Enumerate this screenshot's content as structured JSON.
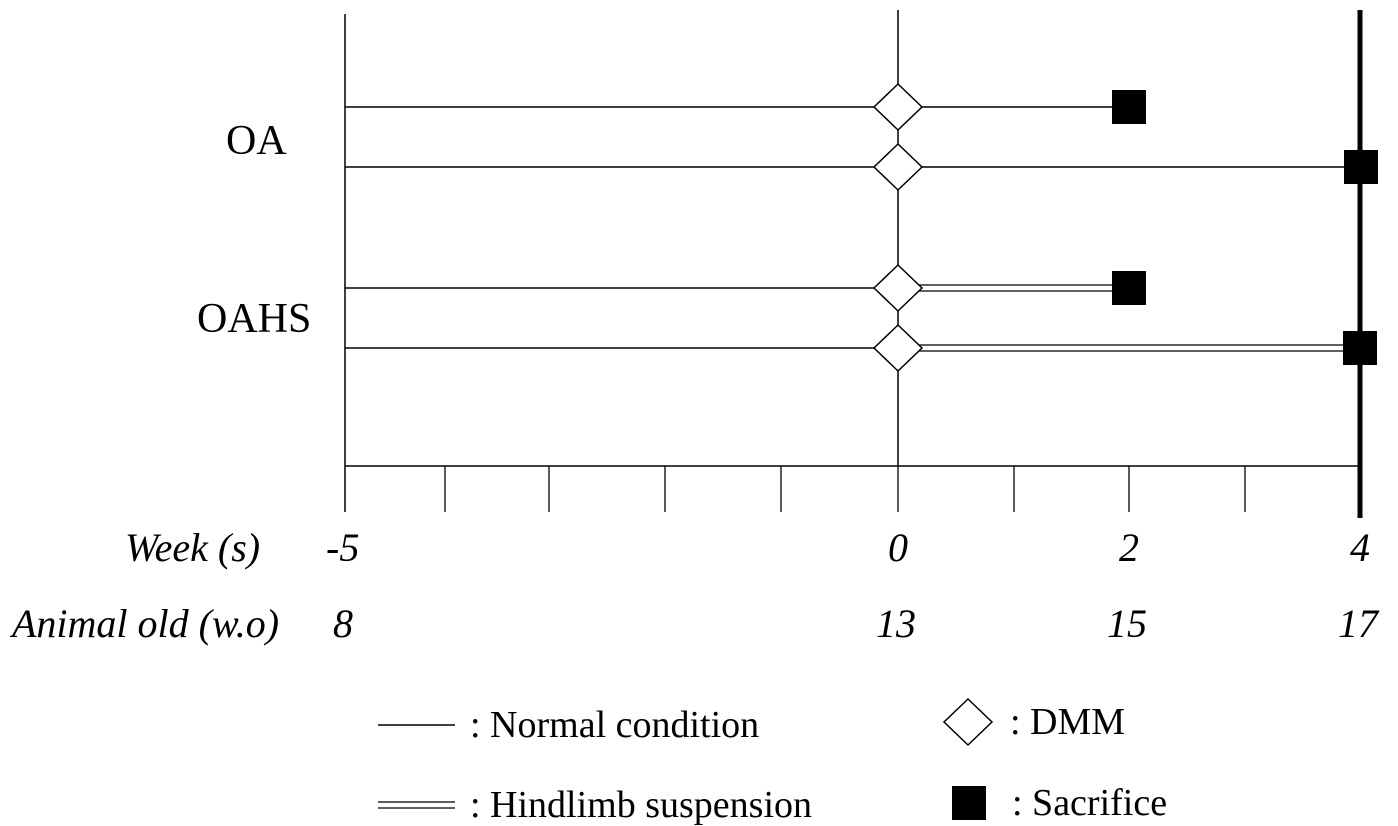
{
  "groups": [
    "OA",
    "OAHS"
  ],
  "axis": {
    "week_label": "Week (s)",
    "age_label": "Animal old (w.o)",
    "ticks": [
      {
        "week": "-5",
        "age": "8"
      },
      {
        "week": "0",
        "age": "13"
      },
      {
        "week": "2",
        "age": "15"
      },
      {
        "week": "4",
        "age": "17"
      }
    ]
  },
  "rows": [
    {
      "group": "OA",
      "start_week": -5,
      "dmm_week": 0,
      "suspension": false,
      "sacrifice_week": 2
    },
    {
      "group": "OA",
      "start_week": -5,
      "dmm_week": 0,
      "suspension": false,
      "sacrifice_week": 4
    },
    {
      "group": "OAHS",
      "start_week": -5,
      "dmm_week": 0,
      "suspension": true,
      "sacrifice_week": 2
    },
    {
      "group": "OAHS",
      "start_week": -5,
      "dmm_week": 0,
      "suspension": true,
      "sacrifice_week": 4
    }
  ],
  "legend": {
    "normal": ": Normal condition",
    "suspension": ": Hindlimb suspension",
    "dmm": ": DMM",
    "sacrifice": ": Sacrifice"
  }
}
